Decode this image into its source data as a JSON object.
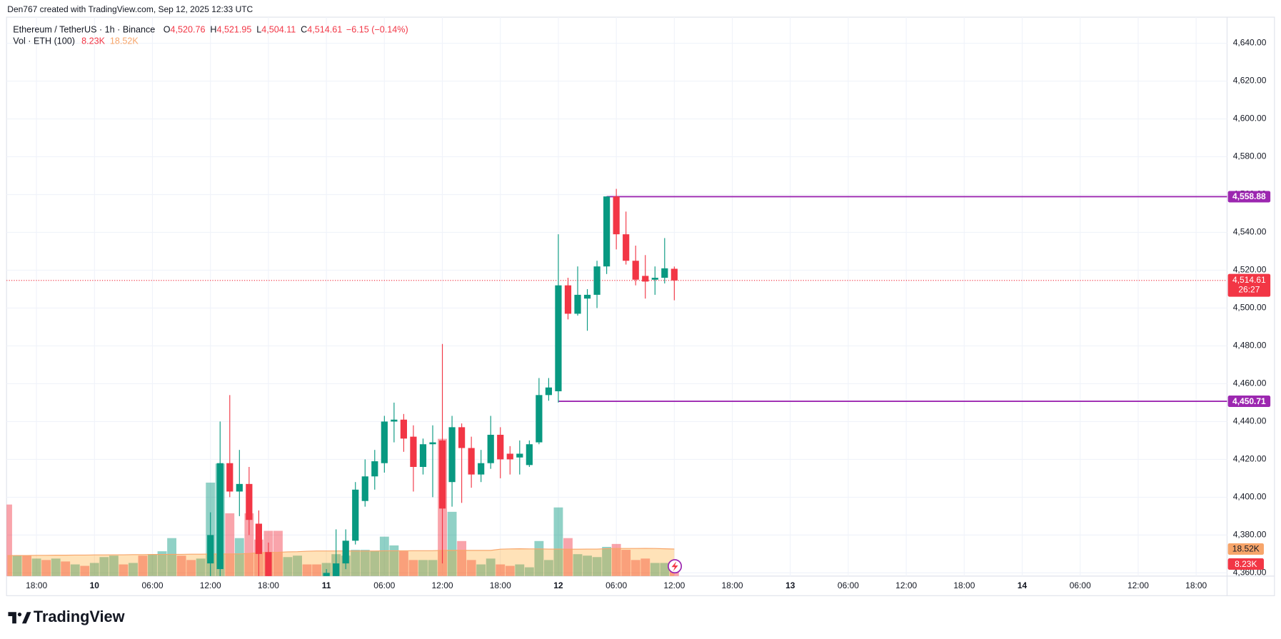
{
  "header": {
    "credit": "Den767 created with TradingView.com, Sep 12, 2025 12:33 UTC"
  },
  "chart_data": {
    "type": "candlestick",
    "title": "Ethereum / TetherUS · 1h · Binance",
    "ohlc": [
      {
        "key": "O",
        "value": "4,520.76"
      },
      {
        "key": "H",
        "value": "4,521.95"
      },
      {
        "key": "L",
        "value": "4,504.11"
      },
      {
        "key": "C",
        "value": "4,514.61"
      }
    ],
    "change": "−6.15 (−0.14%)",
    "x": [
      36,
      37,
      38,
      39,
      40,
      41,
      42,
      48,
      49,
      50,
      51,
      52,
      53,
      54,
      55,
      56,
      57,
      58,
      59,
      60,
      61,
      62,
      63,
      64,
      65,
      66,
      67,
      68,
      69,
      70,
      71,
      72,
      73,
      74,
      75,
      76,
      77,
      78,
      79,
      80,
      81,
      82,
      83,
      84
    ],
    "open": [
      4365,
      4362,
      4418,
      4403,
      4407,
      4386,
      4371,
      4357,
      4358,
      4365,
      4377,
      4398,
      4411,
      4418,
      4440,
      4441,
      4432,
      4416,
      4428,
      4430,
      4408,
      4437,
      4426,
      4412,
      4418,
      4433,
      4423,
      4421,
      4417,
      4429,
      4454,
      4456,
      4512,
      4497,
      4505,
      4507,
      4522,
      4559,
      4539,
      4525,
      4517,
      4515,
      4516,
      4520.76
    ],
    "high": [
      4392,
      4440,
      4454,
      4425,
      4416,
      4393,
      4376,
      4362,
      4383,
      4383,
      4408,
      4420,
      4425,
      4443,
      4450,
      4444,
      4438,
      4431,
      4438,
      4481,
      4443,
      4439,
      4432,
      4425,
      4443,
      4437,
      4427,
      4430,
      4430,
      4463,
      4463,
      4539,
      4516,
      4522,
      4510,
      4525,
      4559,
      4563,
      4551,
      4533,
      4528,
      4522,
      4537,
      4521.95
    ],
    "low": [
      4355,
      4358,
      4400,
      4390,
      4380,
      4358,
      4350,
      4354,
      4355,
      4362,
      4375,
      4395,
      4404,
      4413,
      4429,
      4424,
      4403,
      4412,
      4400,
      4365,
      4395,
      4397,
      4405,
      4408,
      4415,
      4410,
      4412,
      4412,
      4416,
      4428,
      4451,
      4450,
      4494,
      4496,
      4488,
      4500,
      4518,
      4531,
      4523,
      4512,
      4505,
      4507,
      4513,
      4504.11
    ],
    "close": [
      4380,
      4418,
      4403,
      4407,
      4388,
      4370,
      4356,
      4360,
      4365,
      4377,
      4404,
      4411,
      4419,
      4440,
      4441,
      4431,
      4416,
      4428,
      4429,
      4394,
      4437,
      4426,
      4412,
      4418,
      4433,
      4420,
      4420,
      4423,
      4428,
      4454,
      4458,
      4512,
      4497,
      4507,
      4507,
      4522,
      4559,
      4539,
      4525,
      4515,
      4514,
      4516,
      4521,
      4514.61
    ],
    "up_color": "#089981",
    "down_color": "#f23645",
    "xlim": [
      14.9,
      141.2
    ],
    "xticks": [
      {
        "value": 18,
        "label": "18:00"
      },
      {
        "value": 24,
        "label": "10"
      },
      {
        "value": 30,
        "label": "06:00"
      },
      {
        "value": 36,
        "label": "12:00"
      },
      {
        "value": 42,
        "label": "18:00"
      },
      {
        "value": 48,
        "label": "11"
      },
      {
        "value": 54,
        "label": "06:00"
      },
      {
        "value": 60,
        "label": "12:00"
      },
      {
        "value": 66,
        "label": "18:00"
      },
      {
        "value": 72,
        "label": "12"
      },
      {
        "value": 78,
        "label": "06:00"
      },
      {
        "value": 84,
        "label": "12:00"
      },
      {
        "value": 90,
        "label": "18:00"
      },
      {
        "value": 96,
        "label": "13"
      },
      {
        "value": 102,
        "label": "06:00"
      },
      {
        "value": 108,
        "label": "12:00"
      },
      {
        "value": 114,
        "label": "18:00"
      },
      {
        "value": 120,
        "label": "14"
      },
      {
        "value": 126,
        "label": "06:00"
      },
      {
        "value": 132,
        "label": "12:00"
      },
      {
        "value": 138,
        "label": "18:00"
      }
    ],
    "ylim": [
      4358.3,
      4659.4
    ],
    "yticks": [
      {
        "value": 4360,
        "label": "4,360.00"
      },
      {
        "value": 4380,
        "label": "4,380.00"
      },
      {
        "value": 4400,
        "label": "4,400.00"
      },
      {
        "value": 4420,
        "label": "4,420.00"
      },
      {
        "value": 4440,
        "label": "4,440.00"
      },
      {
        "value": 4460,
        "label": "4,460.00"
      },
      {
        "value": 4480,
        "label": "4,480.00"
      },
      {
        "value": 4500,
        "label": "4,500.00"
      },
      {
        "value": 4520,
        "label": "4,520.00"
      },
      {
        "value": 4540,
        "label": "4,540.00"
      },
      {
        "value": 4560,
        "label": "4,560.00"
      },
      {
        "value": 4580,
        "label": "4,580.00"
      },
      {
        "value": 4600,
        "label": "4,600.00"
      },
      {
        "value": 4620,
        "label": "4,620.00"
      },
      {
        "value": 4640,
        "label": "4,640.00"
      }
    ],
    "grid": true,
    "levels": [
      {
        "value": 4558.88,
        "label": "4,558.88",
        "start": 77,
        "color": "#9c27b0"
      },
      {
        "value": 4450.71,
        "label": "4,450.71",
        "start": 72,
        "color": "#9c27b0"
      }
    ],
    "last_price": {
      "value": 4514.61,
      "label": "4,514.61",
      "countdown": "26:27",
      "color": "#f23645"
    },
    "volume": {
      "name": "Vol · ETH (100)",
      "last_label": "8.23K",
      "ma_label": "18.52K",
      "y2lim": [
        0,
        390
      ],
      "ma_color": "#f7a56a",
      "x": [
        15,
        16,
        17,
        18,
        19,
        20,
        21,
        22,
        23,
        24,
        25,
        26,
        27,
        28,
        29,
        30,
        31,
        32,
        33,
        34,
        35,
        36,
        37,
        38,
        39,
        40,
        41,
        42,
        43,
        44,
        45,
        46,
        47,
        48,
        49,
        50,
        51,
        52,
        53,
        54,
        55,
        56,
        57,
        58,
        59,
        60,
        61,
        62,
        63,
        64,
        65,
        66,
        67,
        68,
        69,
        70,
        71,
        72,
        73,
        74,
        75,
        76,
        77,
        78,
        79,
        80,
        81,
        82,
        83,
        84
      ],
      "values": [
        49,
        14,
        14,
        12,
        11,
        12,
        10,
        8,
        7,
        9,
        13,
        14,
        8,
        9,
        14,
        15,
        17,
        26,
        14,
        11,
        12,
        64,
        77,
        43,
        26,
        43,
        25,
        31,
        31,
        13,
        14,
        8,
        8,
        9,
        15,
        14,
        18,
        18,
        17,
        27,
        21,
        17,
        11,
        11,
        11,
        94,
        44,
        24,
        11,
        8,
        12,
        8,
        7,
        8,
        6,
        24,
        11,
        47,
        26,
        15,
        14,
        13,
        20,
        22,
        18,
        11,
        12,
        9,
        9,
        8.23
      ],
      "ma": [
        14.0,
        14.1,
        14.1,
        14.2,
        14.2,
        14.3,
        14.3,
        14.4,
        14.4,
        14.5,
        14.5,
        14.6,
        14.6,
        14.7,
        14.7,
        14.8,
        14.8,
        14.9,
        14.9,
        15.0,
        15.0,
        15.1,
        15.1,
        15.2,
        15.2,
        15.5,
        15.9,
        16.2,
        16.3,
        16.6,
        16.7,
        17.0,
        17.2,
        17.2,
        17.2,
        17.2,
        17.2,
        17.2,
        17.2,
        17.3,
        17.3,
        17.3,
        17.4,
        17.4,
        17.4,
        17.6,
        17.6,
        17.6,
        17.6,
        17.6,
        17.6,
        18.4,
        18.6,
        18.7,
        18.6,
        18.6,
        18.5,
        18.5,
        18.4,
        18.4,
        18.5,
        18.5,
        18.8,
        18.9,
        18.9,
        18.9,
        19.0,
        18.9,
        18.7,
        18.52
      ],
      "colors": [
        "#f23645",
        "#089981",
        "#f23645",
        "#089981",
        "#f23645",
        "#089981",
        "#f23645",
        "#089981",
        "#f23645",
        "#089981",
        "#089981",
        "#089981",
        "#f23645",
        "#089981",
        "#f23645",
        "#089981",
        "#089981",
        "#089981",
        "#f23645",
        "#f23645",
        "#089981",
        "#089981",
        "#089981",
        "#f23645",
        "#089981",
        "#f23645",
        "#f23645",
        "#f23645",
        "#f23645",
        "#089981",
        "#089981",
        "#f23645",
        "#f23645",
        "#089981",
        "#089981",
        "#089981",
        "#089981",
        "#089981",
        "#089981",
        "#089981",
        "#089981",
        "#f23645",
        "#f23645",
        "#089981",
        "#089981",
        "#f23645",
        "#089981",
        "#f23645",
        "#f23645",
        "#089981",
        "#089981",
        "#f23645",
        "#f23645",
        "#089981",
        "#089981",
        "#089981",
        "#089981",
        "#089981",
        "#f23645",
        "#089981",
        "#089981",
        "#089981",
        "#089981",
        "#f23645",
        "#f23645",
        "#f23645",
        "#f23645",
        "#089981",
        "#089981",
        "#f23645"
      ]
    }
  },
  "footer": {
    "brand": "TradingView"
  }
}
